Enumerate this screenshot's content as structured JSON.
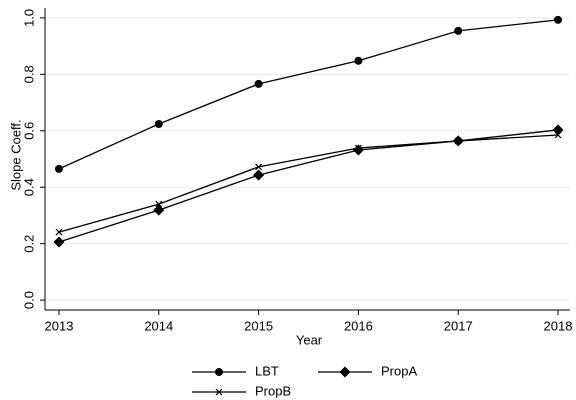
{
  "chart_data": {
    "type": "line",
    "x_label": "Year",
    "y_label": "Slope Coeff.",
    "x": [
      2013,
      2014,
      2015,
      2016,
      2017,
      2018
    ],
    "series": [
      {
        "name": "LBT",
        "color": "#000000",
        "marker": "circle",
        "values": [
          0.465,
          0.624,
          0.766,
          0.848,
          0.954,
          0.993
        ]
      },
      {
        "name": "PropA",
        "color": "#000000",
        "marker": "diamond",
        "values": [
          0.206,
          0.319,
          0.443,
          0.532,
          0.564,
          0.603
        ]
      },
      {
        "name": "PropB",
        "color": "#000000",
        "marker": "x",
        "values": [
          0.241,
          0.34,
          0.472,
          0.539,
          0.564,
          0.585
        ]
      }
    ],
    "xlim": [
      2012.86,
      2018.12
    ],
    "ylim": [
      -0.035,
      1.035
    ],
    "xticks": [
      2013,
      2014,
      2015,
      2016,
      2017,
      2018
    ],
    "yticks": [
      {
        "value": 0,
        "label": "0.0"
      },
      0.2,
      0.4,
      0.6,
      0.8,
      {
        "value": 1,
        "label": "1.0"
      }
    ],
    "grid": true,
    "legend": "bottom"
  }
}
